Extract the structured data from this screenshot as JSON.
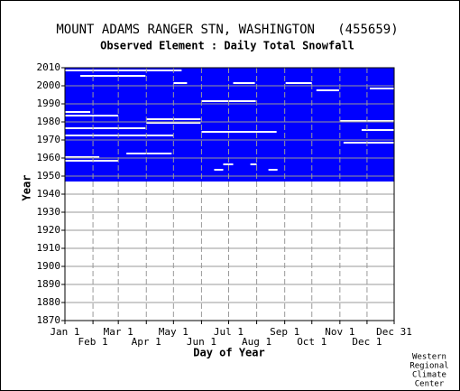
{
  "chart_data": {
    "type": "availability",
    "title": "MOUNT ADAMS RANGER STN, WASHINGTON   (455659)",
    "subtitle": "Observed Element : Daily Total Snowfall",
    "x_label": "Day of Year",
    "y_label": "Year",
    "credit": [
      "Western",
      "Regional",
      "Climate",
      "Center"
    ],
    "color": "#0000ff",
    "xlim": [
      1,
      365
    ],
    "ylim": [
      1870,
      2010
    ],
    "xticks": [
      {
        "value": 1,
        "label": "Jan 1"
      },
      {
        "value": 32,
        "label": "Feb 1"
      },
      {
        "value": 60,
        "label": "Mar 1"
      },
      {
        "value": 91,
        "label": "Apr 1"
      },
      {
        "value": 121,
        "label": "May 1"
      },
      {
        "value": 152,
        "label": "Jun 1"
      },
      {
        "value": 182,
        "label": "Jul 1"
      },
      {
        "value": 213,
        "label": "Aug 1"
      },
      {
        "value": 244,
        "label": "Sep 1"
      },
      {
        "value": 274,
        "label": "Oct 1"
      },
      {
        "value": 305,
        "label": "Nov 1"
      },
      {
        "value": 335,
        "label": "Dec 1"
      },
      {
        "value": 365,
        "label": "Dec 31"
      }
    ],
    "yticks": [
      1870,
      1880,
      1890,
      1900,
      1910,
      1920,
      1930,
      1940,
      1950,
      1960,
      1970,
      1980,
      1990,
      2000,
      2010
    ],
    "grid": true,
    "record": {
      "start_year": 1947,
      "end_year": 2010
    },
    "gaps": [
      {
        "year": 2008,
        "start": 1,
        "end": 130
      },
      {
        "year": 2005,
        "start": 18,
        "end": 90
      },
      {
        "year": 2001,
        "start": 121,
        "end": 136
      },
      {
        "year": 2001,
        "start": 187,
        "end": 211
      },
      {
        "year": 2001,
        "start": 245,
        "end": 274
      },
      {
        "year": 1998,
        "start": 338,
        "end": 365
      },
      {
        "year": 1997,
        "start": 279,
        "end": 304
      },
      {
        "year": 1991,
        "start": 152,
        "end": 212
      },
      {
        "year": 1985,
        "start": 1,
        "end": 29
      },
      {
        "year": 1983,
        "start": 1,
        "end": 60
      },
      {
        "year": 1981,
        "start": 91,
        "end": 151
      },
      {
        "year": 1980,
        "start": 305,
        "end": 365
      },
      {
        "year": 1979,
        "start": 91,
        "end": 151
      },
      {
        "year": 1976,
        "start": 1,
        "end": 90
      },
      {
        "year": 1975,
        "start": 329,
        "end": 365
      },
      {
        "year": 1974,
        "start": 152,
        "end": 235
      },
      {
        "year": 1972,
        "start": 1,
        "end": 121
      },
      {
        "year": 1968,
        "start": 309,
        "end": 365
      },
      {
        "year": 1962,
        "start": 69,
        "end": 119
      },
      {
        "year": 1960,
        "start": 1,
        "end": 39
      },
      {
        "year": 1958,
        "start": 1,
        "end": 60
      },
      {
        "year": 1956,
        "start": 176,
        "end": 187
      },
      {
        "year": 1956,
        "start": 206,
        "end": 213
      },
      {
        "year": 1953,
        "start": 166,
        "end": 176
      },
      {
        "year": 1953,
        "start": 226,
        "end": 236
      }
    ]
  }
}
